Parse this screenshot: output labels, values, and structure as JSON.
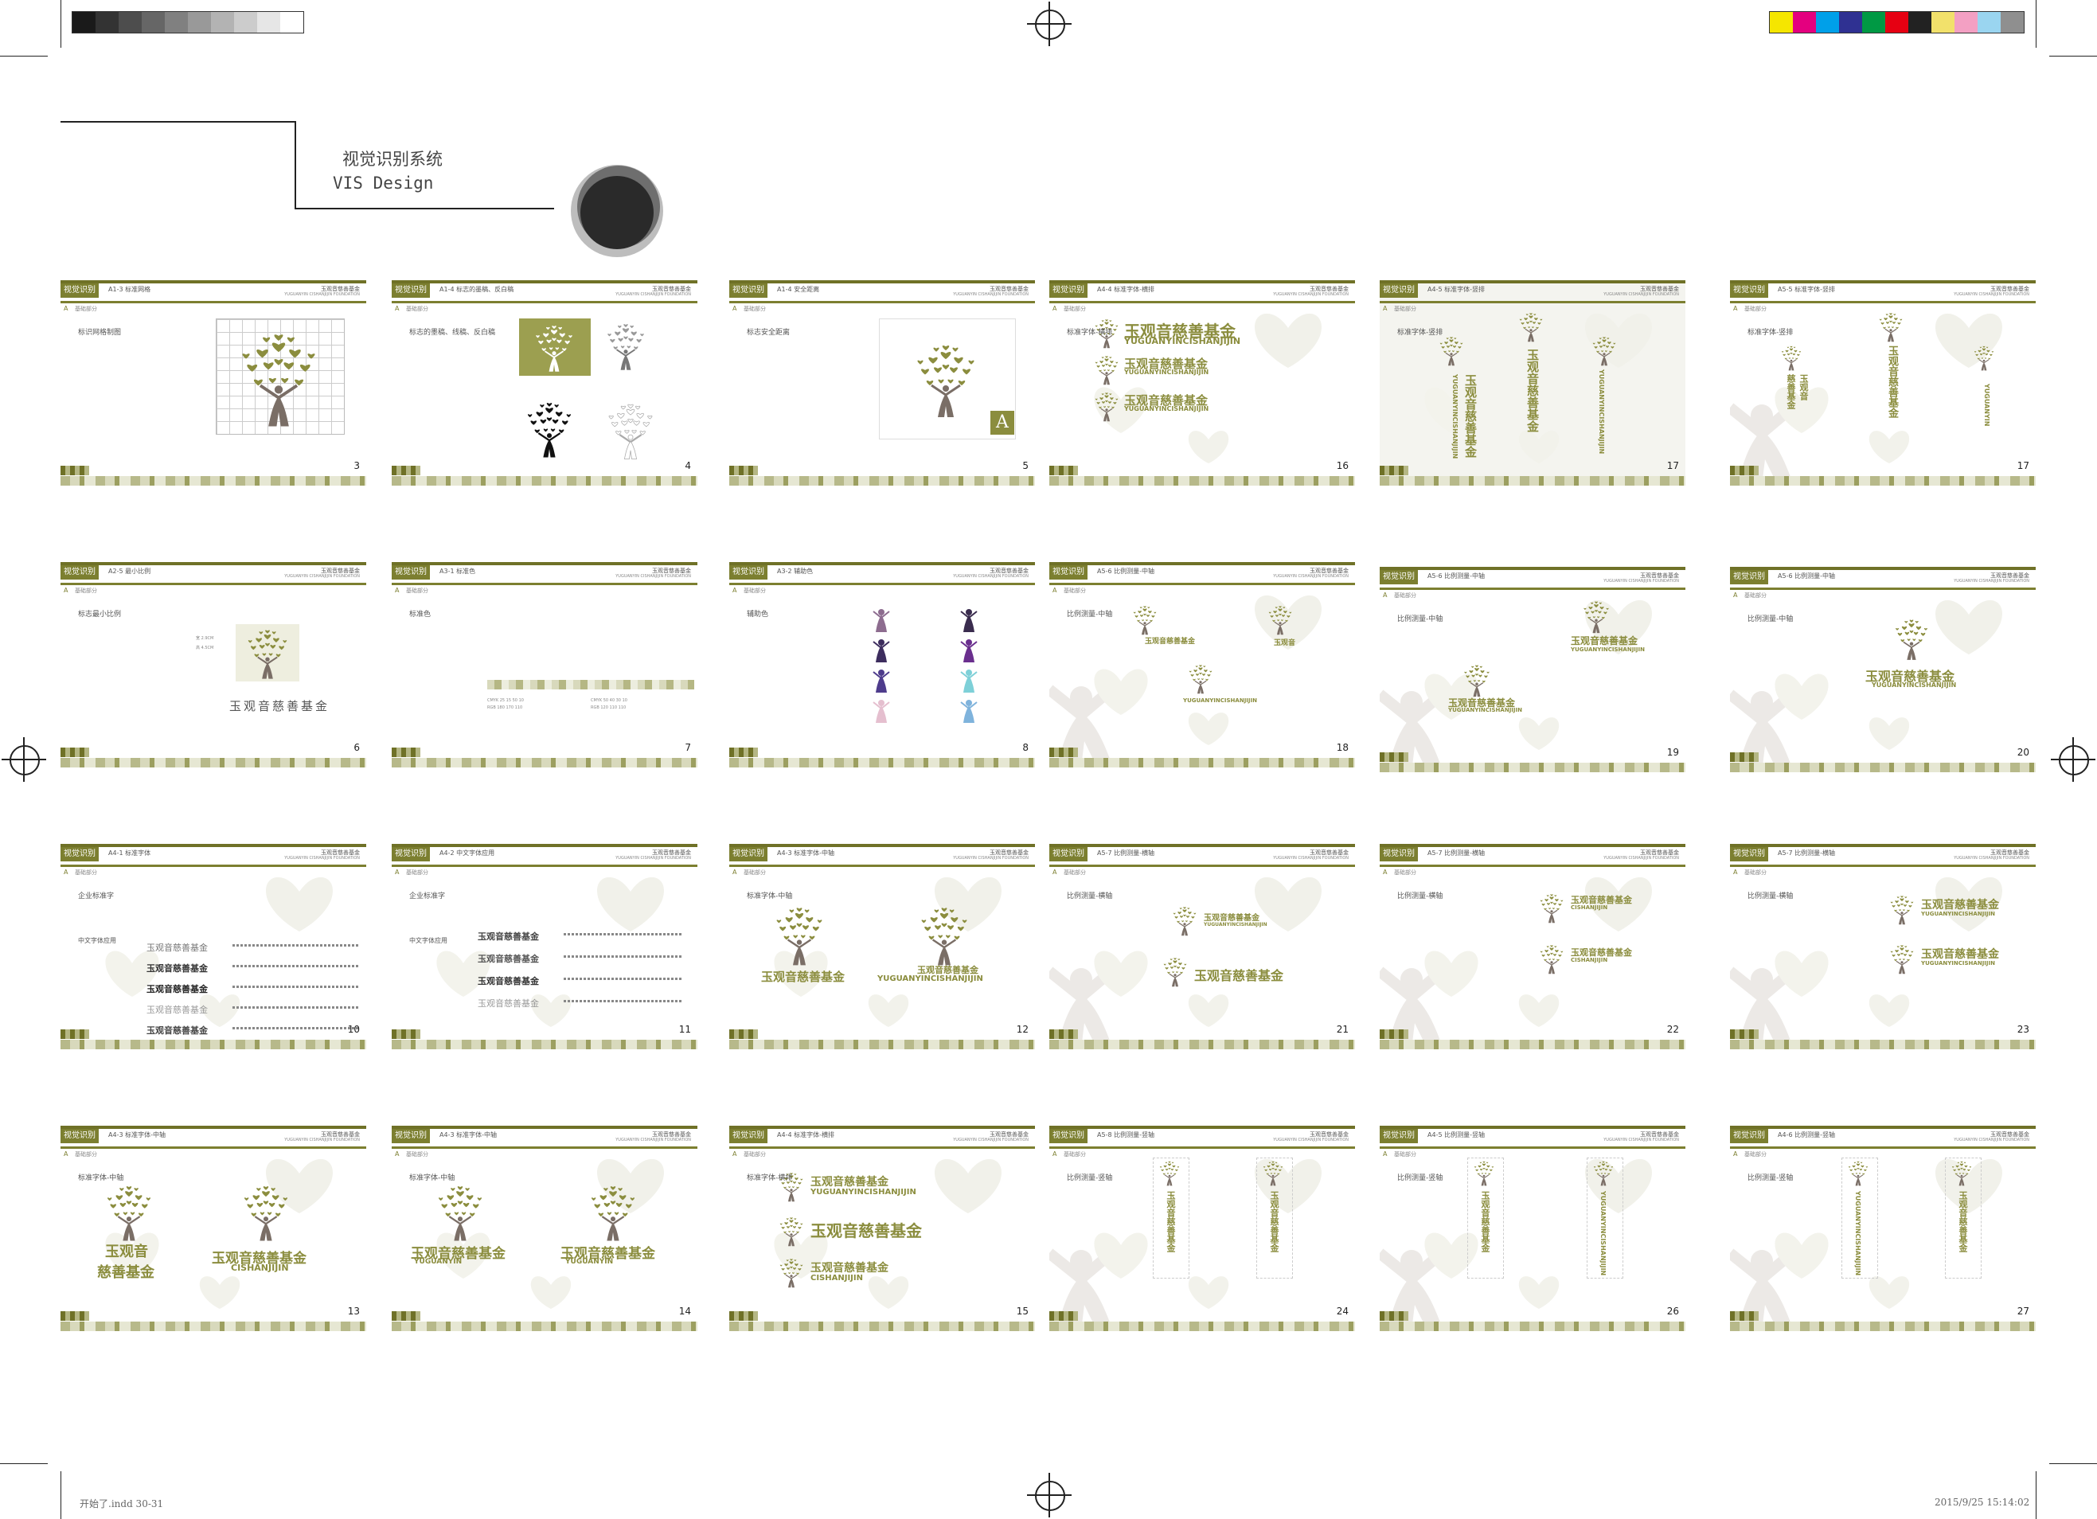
{
  "header": {
    "title_cn": "视觉识别系统",
    "title_en": "VIS Design"
  },
  "colors": {
    "olive": "#8b8d3e",
    "olive_dark": "#6f7127",
    "trunk": "#7a6e66",
    "grayscale": [
      "#1a1a1a",
      "#333333",
      "#4d4d4d",
      "#666666",
      "#808080",
      "#999999",
      "#b3b3b3",
      "#cccccc",
      "#e6e6e6",
      "#ffffff"
    ],
    "process": [
      "#f5e600",
      "#e4007f",
      "#00a0e9",
      "#2f3192",
      "#009944",
      "#e60012",
      "#222222",
      "#f2e16b",
      "#f3a0c3",
      "#9ad5f0",
      "#8f8f8f"
    ]
  },
  "common": {
    "tab": "视觉识别",
    "brand": "玉观音慈善基金",
    "brand_en": "YUGUANYIN CISHANJIJIN FOUNDATION",
    "sect_letter": "A",
    "sect_label": "基础部分"
  },
  "pages": [
    {
      "id": "p3",
      "code": "A1-3 标准网格",
      "num": "3",
      "heading": "标识网格制图"
    },
    {
      "id": "p4",
      "code": "A1-4 标志的墨稿、反白稿",
      "num": "4",
      "heading": "标志的墨稿、线稿、反白稿"
    },
    {
      "id": "p5",
      "code": "A1-4 安全距离",
      "num": "5",
      "heading": "标志安全距离"
    },
    {
      "id": "p16",
      "code": "A4-4 标准字体-横排",
      "num": "16",
      "heading": "标准字体-横排"
    },
    {
      "id": "p17a",
      "code": "A4-5 标准字体-竖排",
      "num": "17",
      "heading": "标准字体-竖排"
    },
    {
      "id": "p17b",
      "code": "A5-5 标准字体-竖排",
      "num": "17",
      "heading": "标准字体-竖排"
    },
    {
      "id": "p6",
      "code": "A2-5 最小比例",
      "num": "6",
      "heading": "标志最小比例",
      "min_size": [
        "宽 2.9CM",
        "高 4.5CM"
      ],
      "serif_name": "玉观音慈善基金"
    },
    {
      "id": "p7",
      "code": "A3-1 标准色",
      "num": "7",
      "heading": "标准色"
    },
    {
      "id": "p8",
      "code": "A3-2 辅助色",
      "num": "8",
      "heading": "辅助色"
    },
    {
      "id": "p18",
      "code": "A5-6 比例测量-中轴",
      "num": "18",
      "heading": "比例测量-中轴"
    },
    {
      "id": "p19",
      "code": "A5-6 比例测量-中轴",
      "num": "19",
      "heading": "比例测量-中轴"
    },
    {
      "id": "p20",
      "code": "A5-6 比例测量-中轴",
      "num": "20",
      "heading": "比例测量-中轴"
    },
    {
      "id": "p10",
      "code": "A4-1 标准字体",
      "num": "10",
      "heading": "企业标准字",
      "sub": "中文字体应用"
    },
    {
      "id": "p11",
      "code": "A4-2 中文字体应用",
      "num": "11",
      "heading": "企业标准字",
      "sub": "中文字体应用"
    },
    {
      "id": "p12",
      "code": "A4-3 标准字体-中轴",
      "num": "12",
      "heading": "标准字体-中轴"
    },
    {
      "id": "p21",
      "code": "A5-7 比例测量-横轴",
      "num": "21",
      "heading": "比例测量-横轴"
    },
    {
      "id": "p22",
      "code": "A5-7 比例测量-横轴",
      "num": "22",
      "heading": "比例测量-横轴"
    },
    {
      "id": "p23",
      "code": "A5-7 比例测量-横轴",
      "num": "23",
      "heading": "比例测量-横轴"
    },
    {
      "id": "p13",
      "code": "A4-3 标准字体-中轴",
      "num": "13",
      "heading": "标准字体-中轴"
    },
    {
      "id": "p14",
      "code": "A4-3 标准字体-中轴",
      "num": "14",
      "heading": "标准字体-中轴"
    },
    {
      "id": "p15",
      "code": "A4-4 标准字体-横排",
      "num": "15",
      "heading": "标准字体-横排"
    },
    {
      "id": "p24",
      "code": "A5-8 比例测量-竖轴",
      "num": "24",
      "heading": "比例测量-竖轴"
    },
    {
      "id": "p26",
      "code": "A4-5 比例测量-竖轴",
      "num": "26",
      "heading": "比例测量-竖轴"
    },
    {
      "id": "p27",
      "code": "A4-6 比例测量-竖轴",
      "num": "27",
      "heading": "比例测量-竖轴"
    }
  ],
  "logo": {
    "cn": "玉观音慈善基金",
    "en": "YUGUANYINCISHANJIJIN",
    "cn_line1": "玉观音",
    "cn_line2": "慈善基金",
    "en_split": "CISHANJIJIN",
    "en_a": "YUGUANYIN",
    "vert_a": "玉观音",
    "vert_b": "慈善基金",
    "vert_en": "YUGUANYIN"
  },
  "footer": {
    "file": "开始了.indd   30-31",
    "date": "2015/9/25   15:14:02"
  }
}
